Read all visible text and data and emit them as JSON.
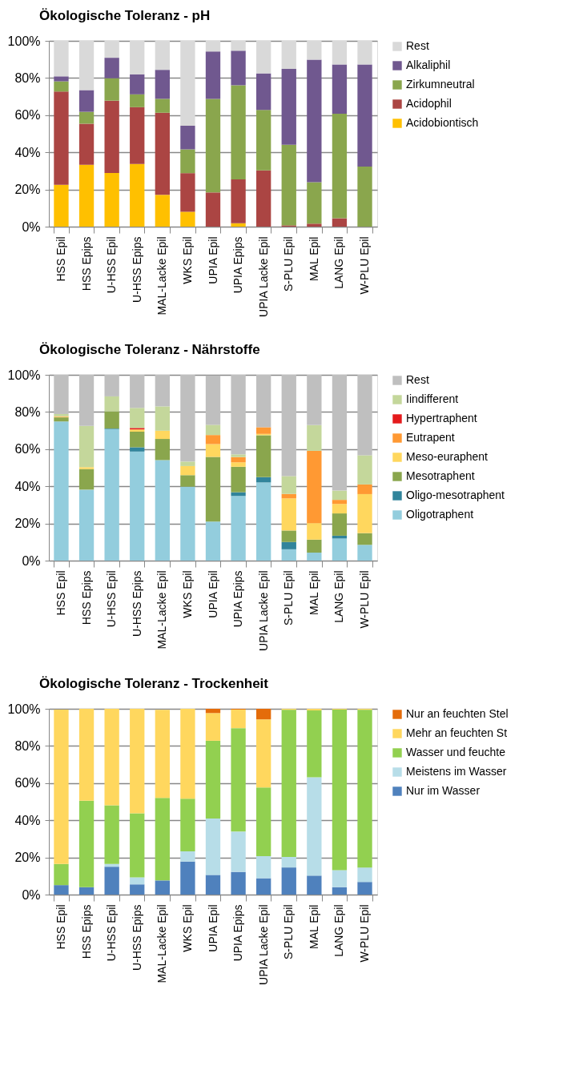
{
  "chart_data": [
    {
      "type": "bar",
      "stacked": true,
      "title": "Ökologische Toleranz - pH",
      "legend": "right",
      "grid": "y",
      "categories": [
        "HSS Epil",
        "HSS Epips",
        "U-HSS Epil",
        "U-HSS Epips",
        "MAL-Lacke Epil",
        "WKS Epil",
        "UPIA Epil",
        "UPIA Epips",
        "UPIA Lacke Epil",
        "S-PLU Epil",
        "MAL Epil",
        "LANG Epil",
        "W-PLU Epil"
      ],
      "ylim": [
        0,
        100
      ],
      "yticks": [
        {
          "value": 0,
          "label": "0%"
        },
        {
          "value": 20,
          "label": "20%"
        },
        {
          "value": 40,
          "label": "40%"
        },
        {
          "value": 60,
          "label": "60%"
        },
        {
          "value": 80,
          "label": "80%"
        },
        {
          "value": 100,
          "label": "100%"
        }
      ],
      "series": [
        {
          "name": "Acidobiontisch",
          "color": "#ffc000",
          "values": [
            22.5,
            33.3,
            28.9,
            33.7,
            17.1,
            8.0,
            0,
            1.8,
            0,
            0,
            0,
            0,
            0
          ]
        },
        {
          "name": "Acidophil",
          "color": "#ab4543",
          "values": [
            50.2,
            22.1,
            38.9,
            30.6,
            44.2,
            20.8,
            18.4,
            23.6,
            30.3,
            0.7,
            1.6,
            4.5,
            0
          ]
        },
        {
          "name": "Zirkumneutral",
          "color": "#8aa64d",
          "values": [
            5.5,
            6.4,
            12.1,
            6.9,
            7.5,
            12.8,
            50.4,
            50.7,
            32.5,
            43.4,
            22.3,
            56.3,
            32.3
          ]
        },
        {
          "name": "Alkaliphil",
          "color": "#70588f",
          "values": [
            2.7,
            11.7,
            11.0,
            10.8,
            15.6,
            12.7,
            25.5,
            18.6,
            19.7,
            40.8,
            66.0,
            26.5,
            55.0
          ]
        },
        {
          "name": "Rest",
          "color": "#d9d9d9",
          "values": [
            19.1,
            26.5,
            9.1,
            18.0,
            15.6,
            45.7,
            5.7,
            5.3,
            17.5,
            15.1,
            10.1,
            12.7,
            12.7
          ]
        }
      ]
    },
    {
      "type": "bar",
      "stacked": true,
      "title": "Ökologische Toleranz  - Nährstoffe",
      "legend": "right",
      "grid": "y",
      "categories": [
        "HSS Epil",
        "HSS Epips",
        "U-HSS Epil",
        "U-HSS Epips",
        "MAL-Lacke Epil",
        "WKS Epil",
        "UPIA Epil",
        "UPIA Epips",
        "UPIA Lacke Epil",
        "S-PLU Epil",
        "MAL Epil",
        "LANG Epil",
        "W-PLU Epil"
      ],
      "ylim": [
        0,
        100
      ],
      "yticks": [
        {
          "value": 0,
          "label": "0%"
        },
        {
          "value": 20,
          "label": "20%"
        },
        {
          "value": 40,
          "label": "40%"
        },
        {
          "value": 60,
          "label": "60%"
        },
        {
          "value": 80,
          "label": "80%"
        },
        {
          "value": 100,
          "label": "100%"
        }
      ],
      "series": [
        {
          "name": "Oligotraphent",
          "color": "#93cddd",
          "values": [
            74.9,
            38.2,
            70.8,
            58.7,
            54.1,
            39.8,
            21.0,
            34.8,
            42.1,
            6.1,
            4.3,
            11.9,
            8.5
          ]
        },
        {
          "name": "Oligo-mesotraphent",
          "color": "#31849b",
          "values": [
            0,
            0,
            0.3,
            2.3,
            0,
            0,
            null,
            2.0,
            2.8,
            3.9,
            0,
            1.5,
            0
          ]
        },
        {
          "name": "Mesotraphent",
          "color": "#8aa64d",
          "values": [
            2.2,
            11.1,
            9.3,
            8.4,
            11.4,
            6.2,
            34.8,
            13.7,
            22.6,
            6.2,
            7.0,
            12.0,
            6.3
          ]
        },
        {
          "name": "Meso-euraphent",
          "color": "#ffd75e",
          "values": [
            0.3,
            1.0,
            0,
            1.2,
            4.4,
            4.9,
            6.9,
            2.4,
            0.7,
            17.3,
            8.9,
            5.1,
            21.0
          ]
        },
        {
          "name": "Eutrapent",
          "color": "#ff9933",
          "values": [
            0.3,
            0,
            0,
            0,
            0,
            0,
            4.9,
            2.8,
            3.6,
            2.4,
            38.9,
            2.2,
            5.2
          ]
        },
        {
          "name": "Hypertraphent",
          "color": "#e41a1c",
          "values": [
            0,
            0,
            0,
            0.8,
            0,
            0,
            0,
            0,
            0,
            0,
            0,
            0,
            0
          ]
        },
        {
          "name": "Iindifferent",
          "color": "#c4d79b",
          "values": [
            1.2,
            22.2,
            8.0,
            10.8,
            13.1,
            2.4,
            5.5,
            1.5,
            0,
            9.6,
            13.8,
            5.0,
            15.7
          ]
        },
        {
          "name": "Rest",
          "color": "#bfbfbf",
          "values": [
            21.1,
            27.5,
            11.6,
            17.8,
            17.0,
            46.7,
            26.6,
            42.8,
            28.2,
            54.5,
            27.1,
            62.3,
            43.3
          ]
        }
      ]
    },
    {
      "type": "bar",
      "stacked": true,
      "title": "Ökologische Toleranz - Trockenheit",
      "legend": "right",
      "grid": "y",
      "categories": [
        "HSS Epil",
        "HSS Epips",
        "U-HSS Epil",
        "U-HSS Epips",
        "MAL-Lacke Epil",
        "WKS Epil",
        "UPIA Epil",
        "UPIA Epips",
        "UPIA Lacke Epil",
        "S-PLU Epil",
        "MAL Epil",
        "LANG Epil",
        "W-PLU Epil"
      ],
      "ylim": [
        0,
        100
      ],
      "yticks": [
        {
          "value": 0,
          "label": "0%"
        },
        {
          "value": 20,
          "label": "20%"
        },
        {
          "value": 40,
          "label": "40%"
        },
        {
          "value": 60,
          "label": "60%"
        },
        {
          "value": 80,
          "label": "80%"
        },
        {
          "value": 100,
          "label": "100%"
        }
      ],
      "series": [
        {
          "name": "Nur im Wasser",
          "color": "#4f81bd",
          "values": [
            5.1,
            4.0,
            15.0,
            5.5,
            7.6,
            17.8,
            10.6,
            12.2,
            8.8,
            14.6,
            10.2,
            4.0,
            6.8
          ]
        },
        {
          "name": "Meistens im Wasser",
          "color": "#b7dde8",
          "values": [
            null,
            0,
            1.5,
            3.8,
            null,
            5.5,
            30.4,
            21.7,
            11.9,
            5.7,
            53.0,
            9.2,
            7.8
          ]
        },
        {
          "name": "Wasser und feuchte",
          "color": "#92d050",
          "values": [
            11.4,
            46.5,
            31.6,
            34.5,
            44.4,
            28.3,
            41.8,
            55.7,
            37.0,
            79.2,
            35.9,
            86.4,
            84.9
          ]
        },
        {
          "name": "Mehr an feuchten St",
          "color": "#ffd75e",
          "values": [
            83.1,
            49.5,
            51.9,
            56.2,
            47.5,
            48.4,
            14.9,
            10.0,
            36.6,
            0.5,
            0.9,
            0.4,
            0.5
          ]
        },
        {
          "name": "Nur an feuchten Stel",
          "color": "#e46c0a",
          "values": [
            0,
            0,
            0,
            0,
            0,
            0,
            2.3,
            0.4,
            5.7,
            0,
            0,
            0,
            0
          ]
        }
      ]
    }
  ]
}
